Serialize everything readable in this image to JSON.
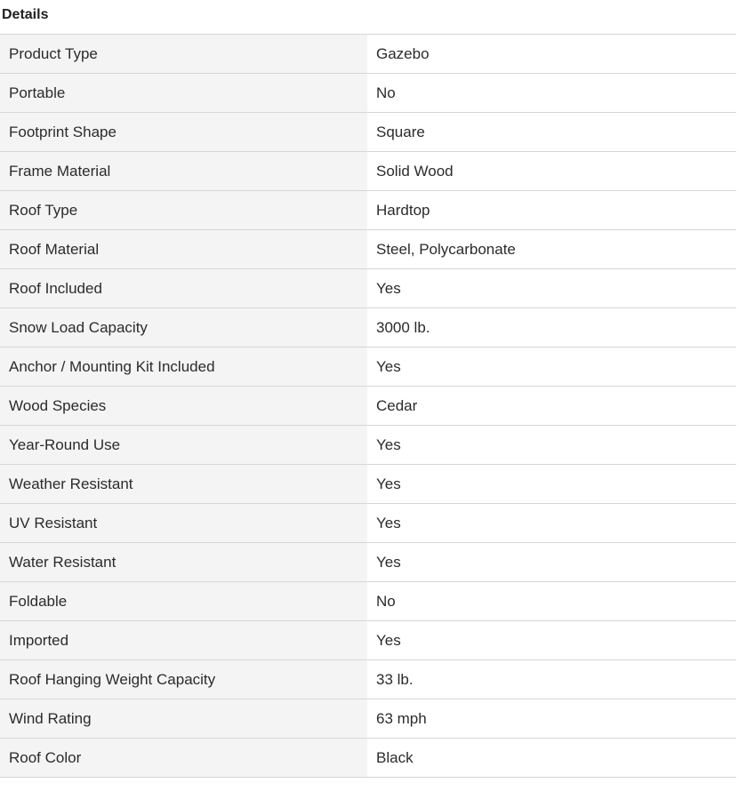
{
  "title": "Details",
  "rows": [
    {
      "label": "Product Type",
      "value": "Gazebo"
    },
    {
      "label": "Portable",
      "value": "No"
    },
    {
      "label": "Footprint Shape",
      "value": "Square"
    },
    {
      "label": "Frame Material",
      "value": "Solid Wood"
    },
    {
      "label": "Roof Type",
      "value": "Hardtop"
    },
    {
      "label": "Roof Material",
      "value": "Steel, Polycarbonate"
    },
    {
      "label": "Roof Included",
      "value": "Yes"
    },
    {
      "label": "Snow Load Capacity",
      "value": "3000 lb."
    },
    {
      "label": "Anchor / Mounting Kit Included",
      "value": "Yes"
    },
    {
      "label": "Wood Species",
      "value": "Cedar"
    },
    {
      "label": "Year-Round Use",
      "value": "Yes"
    },
    {
      "label": "Weather Resistant",
      "value": "Yes"
    },
    {
      "label": "UV Resistant",
      "value": "Yes"
    },
    {
      "label": "Water Resistant",
      "value": "Yes"
    },
    {
      "label": "Foldable",
      "value": "No"
    },
    {
      "label": "Imported",
      "value": "Yes"
    },
    {
      "label": "Roof Hanging Weight Capacity",
      "value": "33 lb."
    },
    {
      "label": "Wind Rating",
      "value": "63 mph"
    },
    {
      "label": "Roof Color",
      "value": "Black"
    }
  ]
}
